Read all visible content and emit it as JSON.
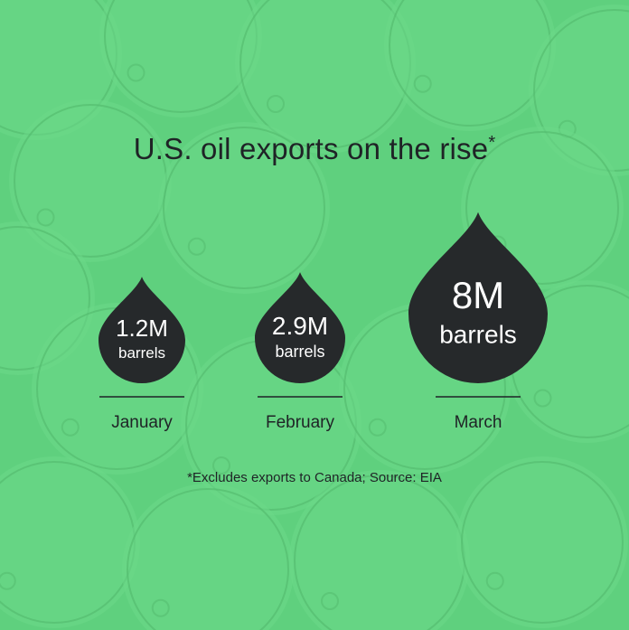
{
  "title": "U.S. oil exports on the rise",
  "title_marker": "*",
  "footnote": "*Excludes exports to Canada; Source: EIA",
  "colors": {
    "background": "#5fd07e",
    "barrel_fill": "#6bd889",
    "barrel_stroke": "#52b96c",
    "drop": "#26292b",
    "drop_text": "#ffffff",
    "text": "#1f2326"
  },
  "chart_data": {
    "type": "bar",
    "unit": "barrels",
    "categories": [
      "January",
      "February",
      "March"
    ],
    "values": [
      1.2,
      2.9,
      8
    ],
    "value_labels": [
      "1.2M",
      "2.9M",
      "8M"
    ]
  }
}
